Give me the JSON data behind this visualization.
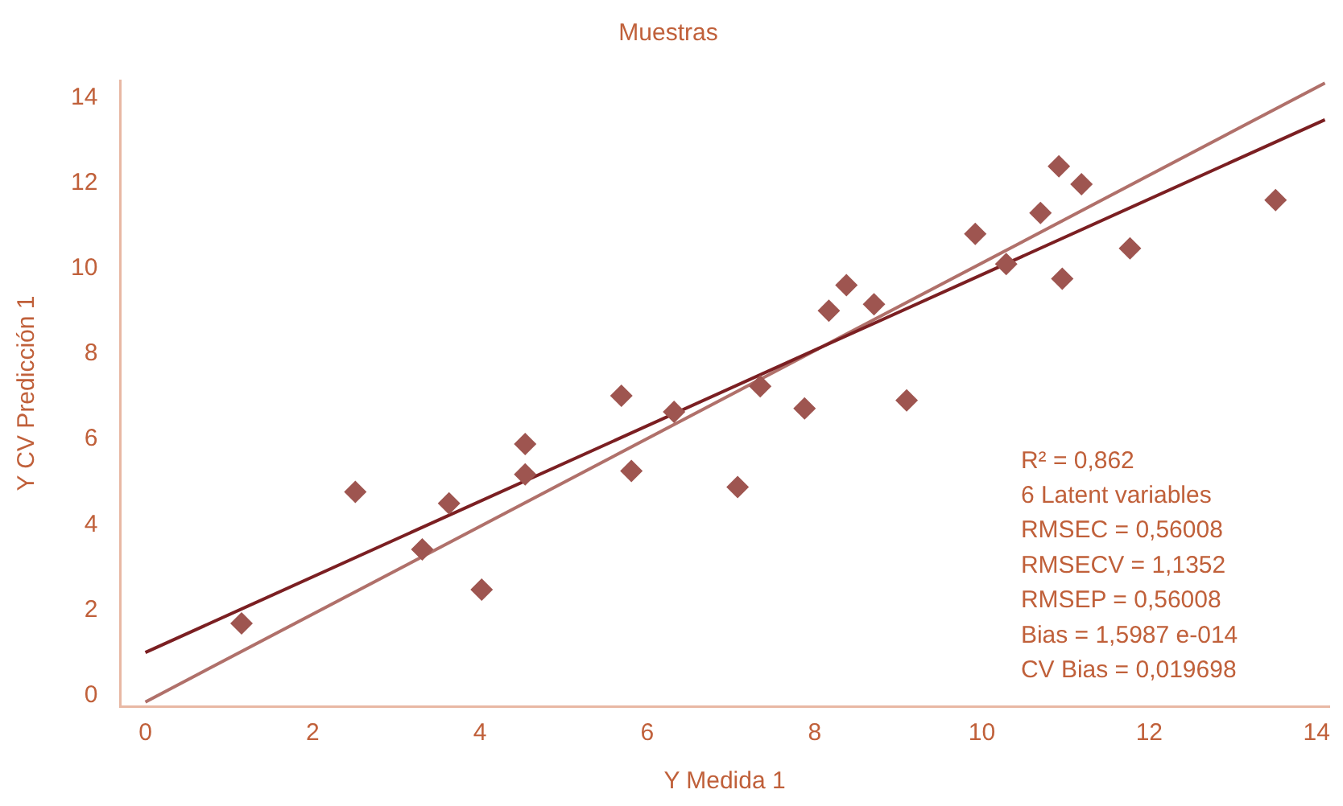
{
  "chart_data": {
    "type": "scatter",
    "title": "Muestras",
    "xlabel": "Y Medida 1",
    "ylabel": "Y CV Predicción 1",
    "xlim": [
      -0.3,
      14.15
    ],
    "ylim": [
      -0.25,
      14.4
    ],
    "xticks": [
      0,
      2,
      4,
      6,
      8,
      10,
      12,
      14
    ],
    "yticks": [
      0,
      2,
      4,
      6,
      8,
      10,
      12,
      14
    ],
    "grid": false,
    "legend": false,
    "series": [
      {
        "color": "#9e5550",
        "marker": "diamond",
        "x": [
          1.15,
          2.51,
          3.31,
          3.63,
          4.02,
          4.54,
          4.54,
          5.69,
          5.81,
          6.32,
          7.08,
          7.35,
          7.88,
          8.17,
          8.38,
          8.71,
          9.1,
          9.92,
          10.29,
          10.7,
          10.92,
          10.96,
          11.19,
          11.77,
          13.51
        ],
        "values": [
          1.69,
          4.77,
          3.42,
          4.5,
          2.48,
          5.89,
          5.18,
          7.02,
          5.26,
          6.64,
          4.88,
          7.24,
          6.72,
          9.01,
          9.61,
          9.16,
          6.91,
          10.81,
          10.1,
          11.3,
          12.39,
          9.76,
          11.97,
          10.47,
          11.6
        ]
      },
      {
        "type": "line",
        "marker": "none",
        "color": "#7b1f22",
        "x": [
          0,
          14.1
        ],
        "values": [
          1.01,
          13.48
        ]
      },
      {
        "type": "line",
        "marker": "none",
        "color": "#b0706a",
        "x": [
          0,
          14.1
        ],
        "values": [
          -0.15,
          14.34
        ]
      }
    ],
    "annotations": [
      "R² = 0,862",
      "6 Latent variables",
      "RMSEC = 0,56008",
      "RMSECV = 1,1352",
      "RMSEP = 0,56008",
      "Bias = 1,5987 e-014",
      "CV Bias = 0,019698"
    ]
  }
}
